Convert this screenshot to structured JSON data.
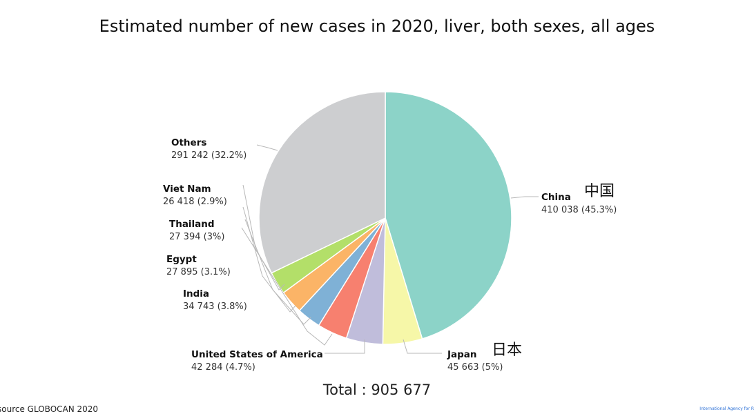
{
  "chart_data": {
    "type": "pie",
    "title": "Estimated number of new cases in 2020, liver, both sexes, all ages",
    "total_label": "Total : 905 677",
    "slices": [
      {
        "name": "China",
        "value": 410038,
        "label": "410 038 (45.3%)",
        "native": "中国",
        "color": "#8cd3c8"
      },
      {
        "name": "Japan",
        "value": 45663,
        "label": "45 663 (5%)",
        "native": "日本",
        "color": "#f6f7a8"
      },
      {
        "name": "United States of America",
        "value": 42284,
        "label": "42 284 (4.7%)",
        "color": "#c0bddb"
      },
      {
        "name": "India",
        "value": 34743,
        "label": "34 743 (3.8%)",
        "color": "#f7806f"
      },
      {
        "name": "Egypt",
        "value": 27895,
        "label": "27 895 (3.1%)",
        "color": "#7fb1d6"
      },
      {
        "name": "Thailand",
        "value": 27394,
        "label": "27 394 (3%)",
        "color": "#fbb467"
      },
      {
        "name": "Viet Nam",
        "value": 26418,
        "label": "26 418 (2.9%)",
        "color": "#b3df69"
      },
      {
        "name": "Others",
        "value": 291242,
        "label": "291 242 (32.2%)",
        "color": "#cdced0"
      }
    ]
  },
  "footer": {
    "source": "source GLOBOCAN 2020",
    "credit": "International Agency for R"
  }
}
